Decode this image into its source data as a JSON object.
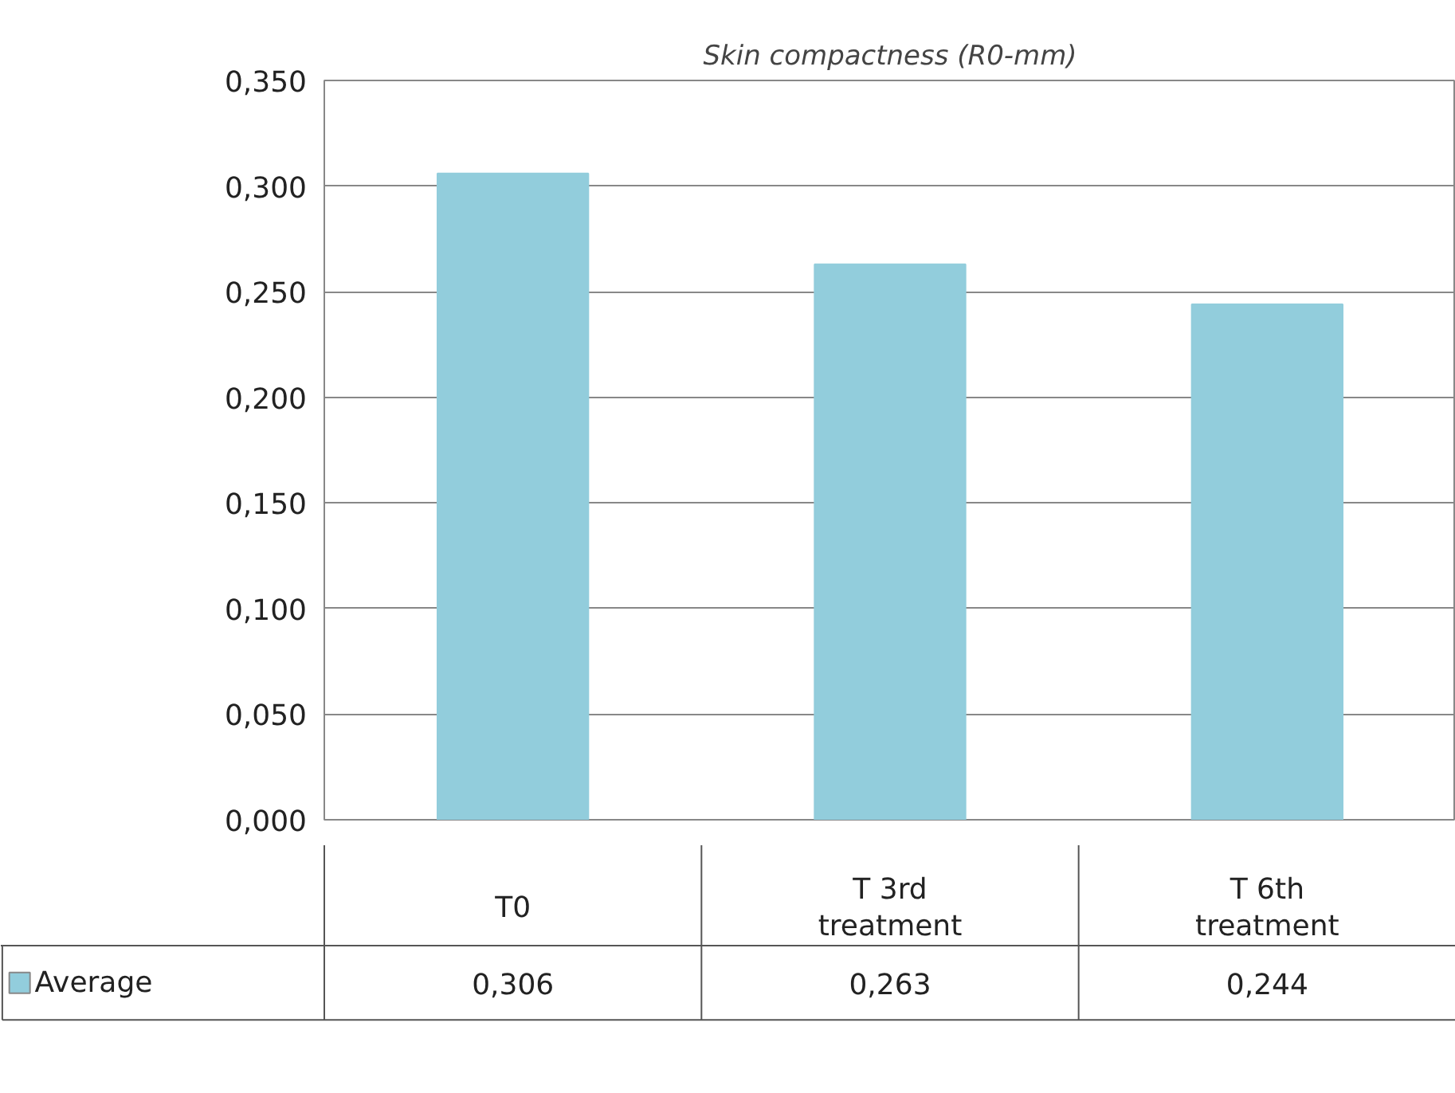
{
  "chart_data": {
    "type": "bar",
    "title": "Skin compactness (R0-mm)",
    "categories": [
      "T0",
      "T 3rd treatment",
      "T 6th treatment"
    ],
    "series": [
      {
        "name": "Average",
        "color": "#92cddc",
        "values": [
          0.306,
          0.263,
          0.244
        ],
        "value_labels": [
          "0,306",
          "0,263",
          "0,244"
        ]
      }
    ],
    "ylim": [
      0,
      0.35
    ],
    "yticks": [
      {
        "value": 0,
        "label": "0,000"
      },
      {
        "value": 0.05,
        "label": "0,050"
      },
      {
        "value": 0.1,
        "label": "0,100"
      },
      {
        "value": 0.15,
        "label": "0,150"
      },
      {
        "value": 0.2,
        "label": "0,200"
      },
      {
        "value": 0.25,
        "label": "0,250"
      },
      {
        "value": 0.3,
        "label": "0,300"
      },
      {
        "value": 0.35,
        "label": "0,350"
      }
    ],
    "grid": "y",
    "legend": "bottom"
  }
}
